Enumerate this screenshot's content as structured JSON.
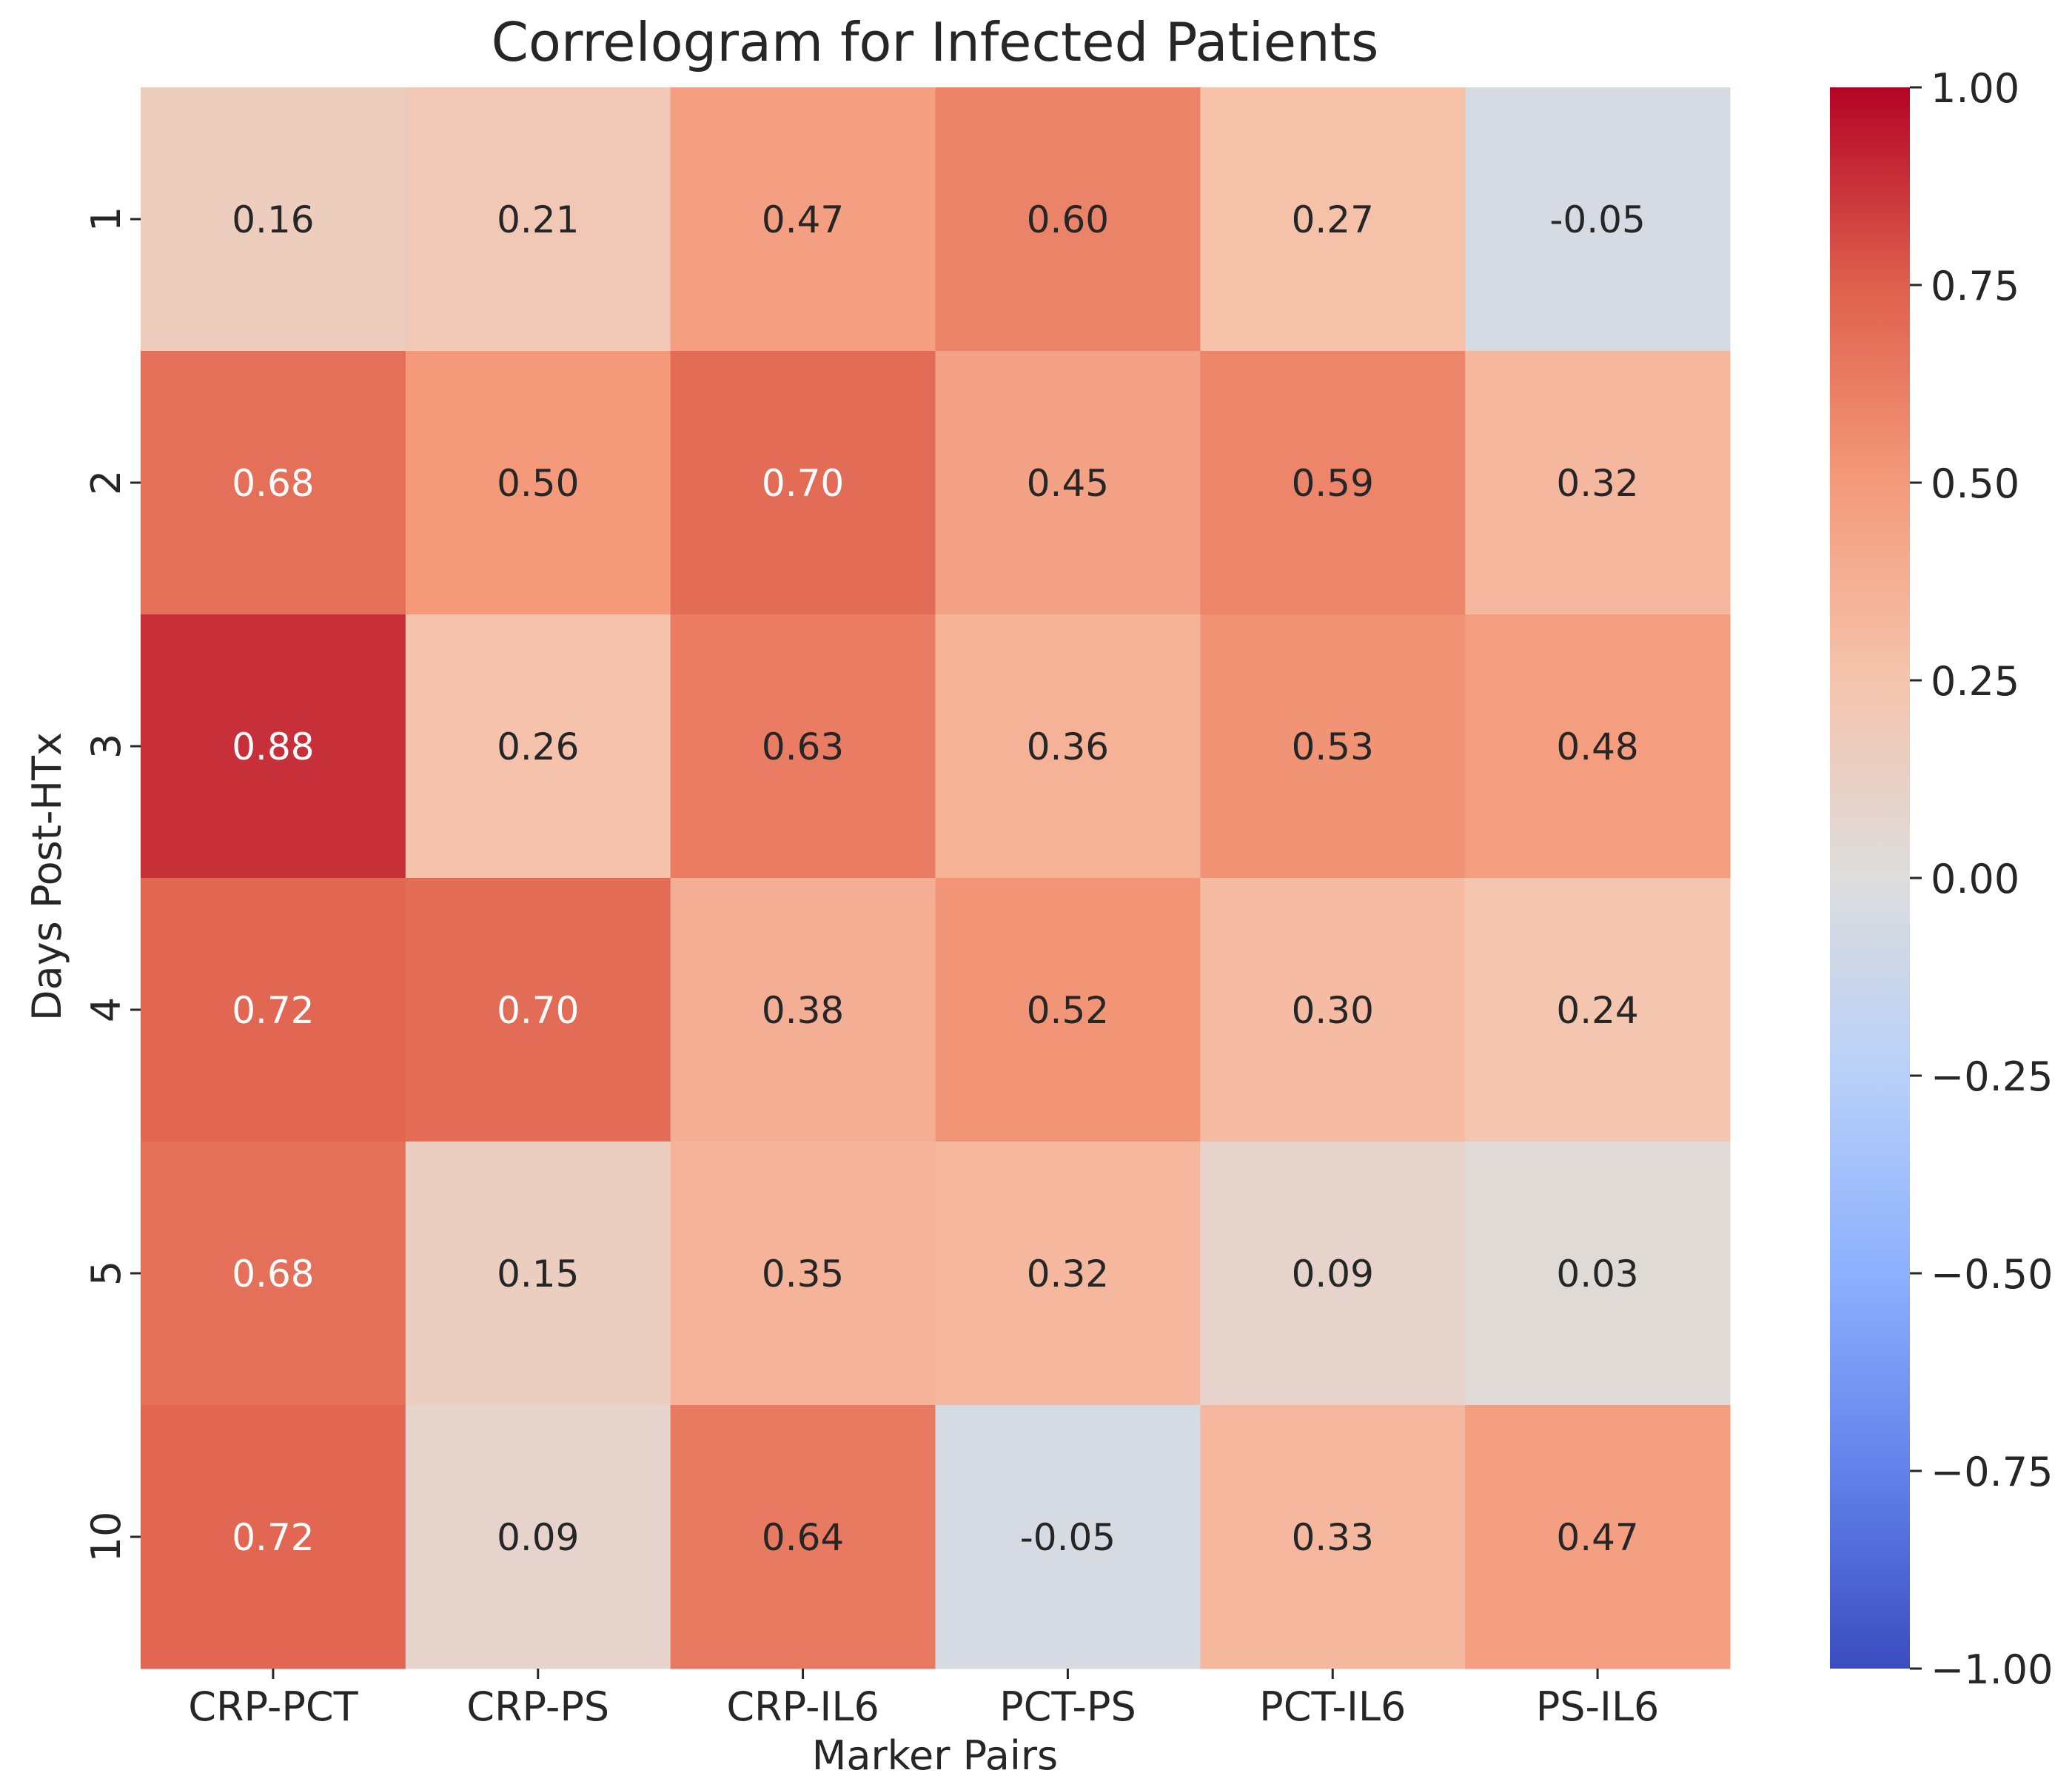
{
  "chart_data": {
    "type": "heatmap",
    "title": "Correlogram for Infected Patients",
    "xlabel": "Marker Pairs",
    "ylabel": "Days Post-HTx",
    "x_categories": [
      "CRP-PCT",
      "CRP-PS",
      "CRP-IL6",
      "PCT-PS",
      "PCT-IL6",
      "PS-IL6"
    ],
    "y_categories": [
      "1",
      "2",
      "3",
      "4",
      "5",
      "10"
    ],
    "values": [
      [
        0.16,
        0.21,
        0.47,
        0.6,
        0.27,
        -0.05
      ],
      [
        0.68,
        0.5,
        0.7,
        0.45,
        0.59,
        0.32
      ],
      [
        0.88,
        0.26,
        0.63,
        0.36,
        0.53,
        0.48
      ],
      [
        0.72,
        0.7,
        0.38,
        0.52,
        0.3,
        0.24
      ],
      [
        0.68,
        0.15,
        0.35,
        0.32,
        0.09,
        0.03
      ],
      [
        0.72,
        0.09,
        0.64,
        -0.05,
        0.33,
        0.47
      ]
    ],
    "value_labels": [
      [
        "0.16",
        "0.21",
        "0.47",
        "0.60",
        "0.27",
        "-0.05"
      ],
      [
        "0.68",
        "0.50",
        "0.70",
        "0.45",
        "0.59",
        "0.32"
      ],
      [
        "0.88",
        "0.26",
        "0.63",
        "0.36",
        "0.53",
        "0.48"
      ],
      [
        "0.72",
        "0.70",
        "0.38",
        "0.52",
        "0.30",
        "0.24"
      ],
      [
        "0.68",
        "0.15",
        "0.35",
        "0.32",
        "0.09",
        "0.03"
      ],
      [
        "0.72",
        "0.09",
        "0.64",
        "-0.05",
        "0.33",
        "0.47"
      ]
    ],
    "colormap": "coolwarm",
    "vmin": -1.0,
    "vmax": 1.0,
    "colorbar": {
      "ticks": [
        1.0,
        0.75,
        0.5,
        0.25,
        0.0,
        -0.25,
        -0.5,
        -0.75,
        -1.0
      ],
      "tick_labels": [
        "1.00",
        "0.75",
        "0.50",
        "0.25",
        "0.00",
        "−0.25",
        "−0.50",
        "−0.75",
        "−1.00"
      ]
    }
  }
}
